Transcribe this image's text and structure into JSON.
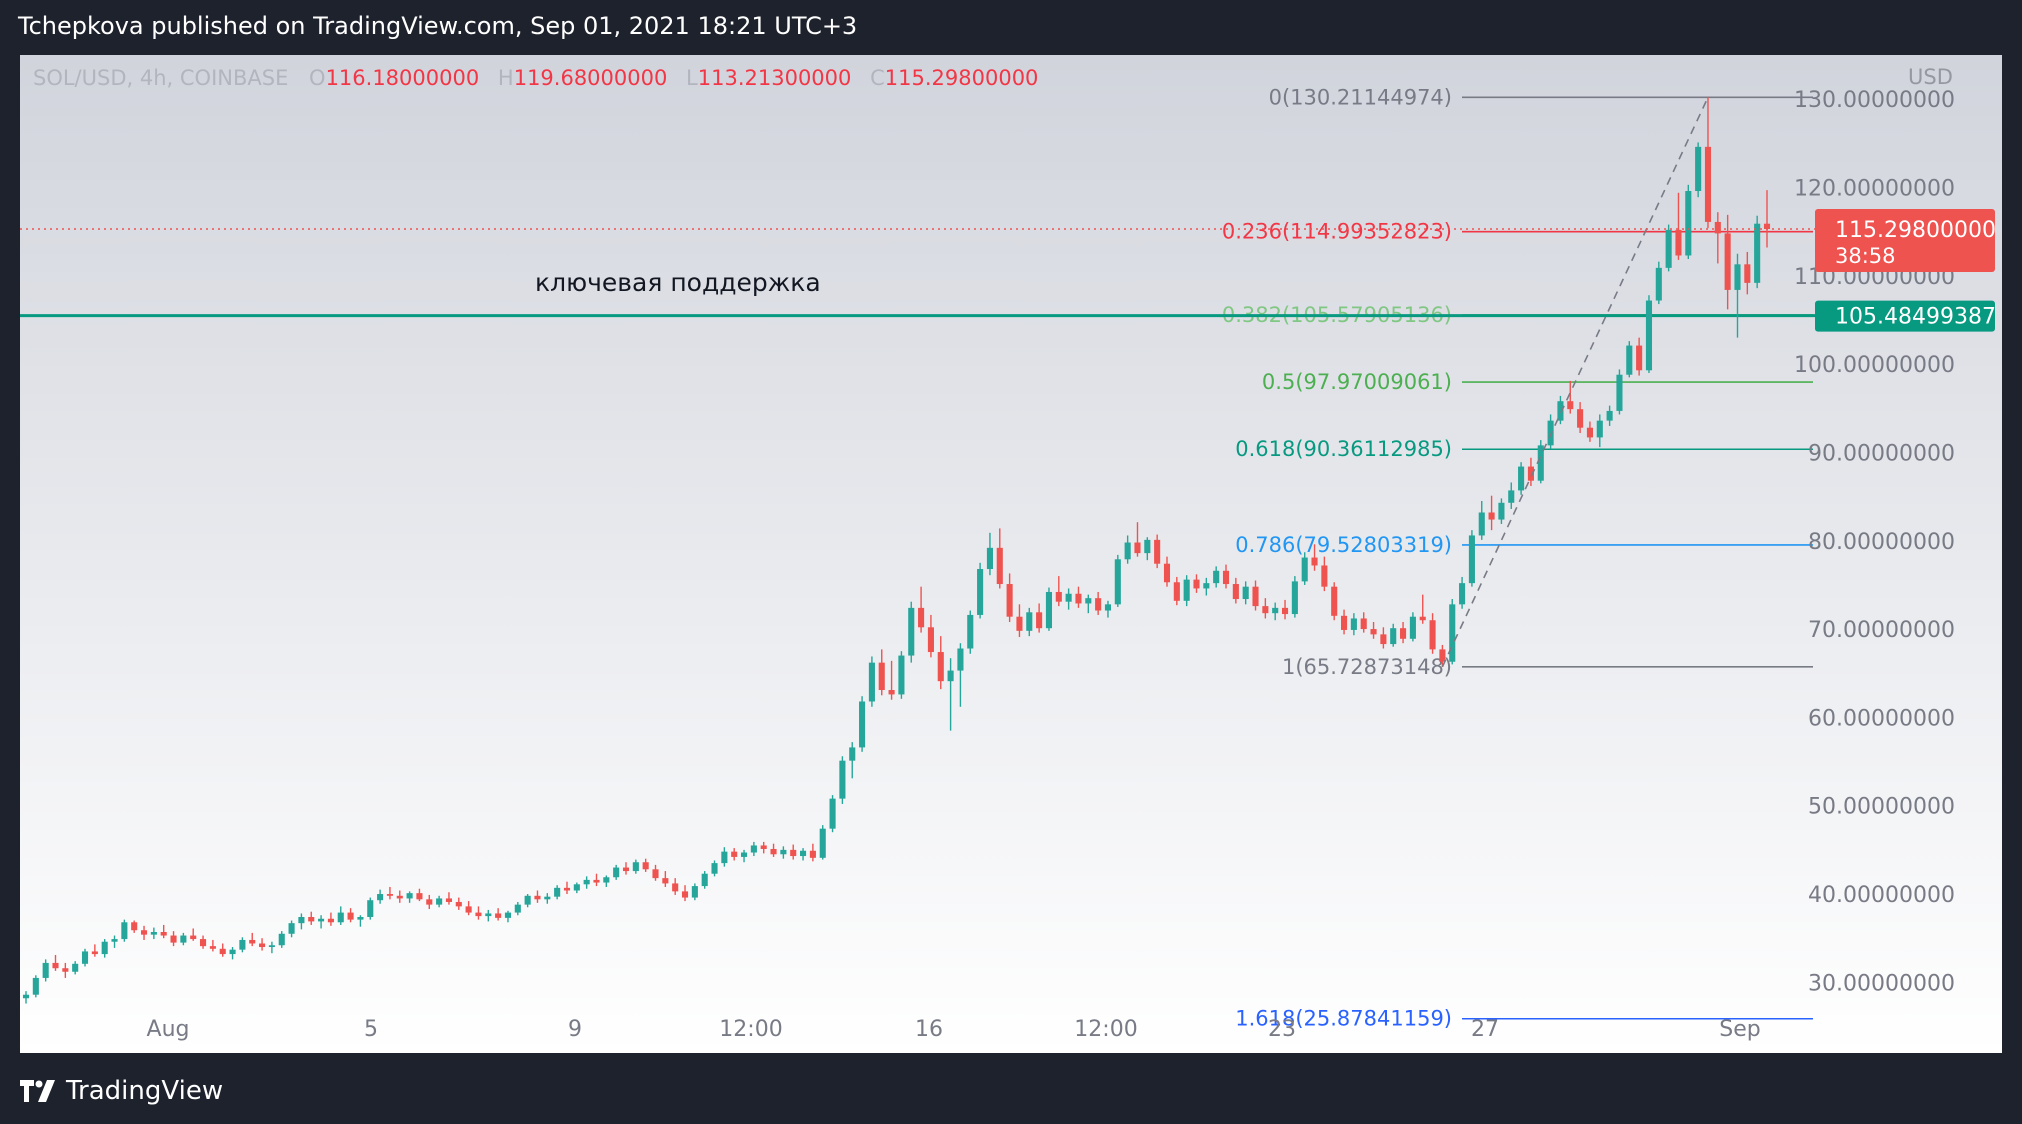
{
  "header": {
    "published": "Tchepkova published on TradingView.com, Sep 01, 2021 18:21 UTC+3"
  },
  "footer": {
    "brand": "TradingView"
  },
  "colors": {
    "up": "#26a69a",
    "down": "#ef5350",
    "frame": "#1e222d",
    "support": "#089981"
  },
  "symbol": {
    "name": "SOL/USD, 4h, COINBASE",
    "o_label": "O",
    "o": "116.18000000",
    "h_label": "H",
    "h": "119.68000000",
    "l_label": "L",
    "l": "113.21300000",
    "c_label": "C",
    "c": "115.29800000"
  },
  "price_axis": {
    "unit": "USD",
    "last_price": "115.29800000",
    "countdown": "38:58",
    "support_price": "105.48499387"
  },
  "annotation": {
    "text": "ключевая поддержка"
  },
  "chart_data": {
    "type": "candlestick",
    "ylim": [
      22,
      135
    ],
    "y_ticks": [
      30,
      40,
      50,
      60,
      70,
      80,
      90,
      100,
      110,
      120,
      130
    ],
    "y_tick_labels": [
      "30.00000000",
      "40.00000000",
      "50.00000000",
      "60.00000000",
      "70.00000000",
      "80.00000000",
      "90.00000000",
      "100.00000000",
      "110.00000000",
      "120.00000000",
      "130.00000000"
    ],
    "x_ticks": [
      "Aug",
      "5",
      "9",
      "12:00",
      "16",
      "12:00",
      "23",
      "27",
      "Sep"
    ],
    "last_price": 115.298,
    "support_level": 105.48499387,
    "fib": [
      {
        "label": "0(130.21144974)",
        "value": 130.21144974,
        "color": "#787b86"
      },
      {
        "label": "0.236(114.99352823)",
        "value": 114.99352823,
        "color": "#f23645"
      },
      {
        "label": "0.382(105.57905136)",
        "value": 105.57905136,
        "color": "#81c784"
      },
      {
        "label": "0.5(97.97009061)",
        "value": 97.97009061,
        "color": "#4caf50"
      },
      {
        "label": "0.618(90.36112985)",
        "value": 90.36112985,
        "color": "#089981"
      },
      {
        "label": "0.786(79.52803319)",
        "value": 79.52803319,
        "color": "#2196f3"
      },
      {
        "label": "1(65.72873148)",
        "value": 65.72873148,
        "color": "#787b86"
      },
      {
        "label": "1.618(25.87841159)",
        "value": 25.87841159,
        "color": "#2962ff"
      }
    ],
    "candles": [
      [
        28.2,
        29.0,
        27.6,
        28.6
      ],
      [
        28.6,
        30.8,
        28.3,
        30.5
      ],
      [
        30.5,
        32.6,
        30.1,
        32.2
      ],
      [
        32.2,
        33.1,
        31.3,
        31.6
      ],
      [
        31.6,
        32.2,
        30.5,
        31.2
      ],
      [
        31.2,
        32.4,
        30.9,
        32.1
      ],
      [
        32.1,
        33.8,
        31.8,
        33.5
      ],
      [
        33.5,
        34.3,
        32.9,
        33.2
      ],
      [
        33.2,
        34.9,
        32.8,
        34.6
      ],
      [
        34.6,
        35.3,
        33.9,
        34.9
      ],
      [
        34.9,
        37.1,
        34.6,
        36.8
      ],
      [
        36.8,
        37.0,
        35.6,
        35.9
      ],
      [
        35.9,
        36.4,
        34.8,
        35.4
      ],
      [
        35.4,
        36.2,
        34.9,
        35.7
      ],
      [
        35.7,
        36.5,
        35.0,
        35.3
      ],
      [
        35.3,
        35.8,
        34.1,
        34.5
      ],
      [
        34.5,
        35.6,
        34.2,
        35.3
      ],
      [
        35.3,
        36.1,
        34.7,
        34.9
      ],
      [
        34.9,
        35.3,
        33.8,
        34.1
      ],
      [
        34.1,
        34.8,
        33.5,
        33.8
      ],
      [
        33.8,
        34.4,
        32.9,
        33.2
      ],
      [
        33.2,
        34.0,
        32.6,
        33.7
      ],
      [
        33.7,
        35.1,
        33.4,
        34.8
      ],
      [
        34.8,
        35.6,
        34.1,
        34.4
      ],
      [
        34.4,
        35.0,
        33.6,
        34.0
      ],
      [
        34.0,
        34.6,
        33.3,
        34.2
      ],
      [
        34.2,
        35.8,
        33.9,
        35.5
      ],
      [
        35.5,
        37.0,
        35.1,
        36.7
      ],
      [
        36.7,
        37.8,
        36.0,
        37.4
      ],
      [
        37.4,
        38.0,
        36.5,
        36.9
      ],
      [
        36.9,
        37.6,
        36.1,
        37.2
      ],
      [
        37.2,
        37.9,
        36.4,
        36.8
      ],
      [
        36.8,
        38.6,
        36.5,
        37.9
      ],
      [
        37.9,
        38.4,
        36.8,
        37.1
      ],
      [
        37.1,
        37.6,
        36.3,
        37.4
      ],
      [
        37.4,
        39.6,
        37.1,
        39.3
      ],
      [
        39.3,
        40.5,
        38.9,
        40.0
      ],
      [
        40.0,
        40.8,
        39.4,
        39.8
      ],
      [
        39.8,
        40.4,
        39.0,
        39.5
      ],
      [
        39.5,
        40.3,
        39.0,
        40.1
      ],
      [
        40.1,
        40.6,
        39.2,
        39.4
      ],
      [
        39.4,
        39.9,
        38.3,
        38.8
      ],
      [
        38.8,
        39.8,
        38.5,
        39.5
      ],
      [
        39.5,
        40.2,
        38.8,
        39.1
      ],
      [
        39.1,
        39.6,
        38.2,
        38.6
      ],
      [
        38.6,
        39.2,
        37.6,
        37.9
      ],
      [
        37.9,
        38.6,
        37.1,
        37.5
      ],
      [
        37.5,
        38.2,
        36.9,
        37.8
      ],
      [
        37.8,
        38.4,
        37.0,
        37.3
      ],
      [
        37.3,
        38.1,
        36.8,
        37.9
      ],
      [
        37.9,
        39.1,
        37.6,
        38.8
      ],
      [
        38.8,
        40.0,
        38.5,
        39.8
      ],
      [
        39.8,
        40.4,
        39.0,
        39.4
      ],
      [
        39.4,
        40.1,
        38.9,
        39.7
      ],
      [
        39.7,
        41.0,
        39.4,
        40.7
      ],
      [
        40.7,
        41.4,
        40.0,
        40.4
      ],
      [
        40.4,
        41.3,
        40.1,
        41.1
      ],
      [
        41.1,
        42.0,
        40.6,
        41.6
      ],
      [
        41.6,
        42.3,
        40.9,
        41.3
      ],
      [
        41.3,
        42.1,
        40.8,
        41.9
      ],
      [
        41.9,
        43.3,
        41.6,
        43.0
      ],
      [
        43.0,
        43.6,
        42.2,
        42.6
      ],
      [
        42.6,
        43.9,
        42.3,
        43.6
      ],
      [
        43.6,
        44.0,
        42.5,
        42.8
      ],
      [
        42.8,
        43.3,
        41.5,
        41.8
      ],
      [
        41.8,
        42.6,
        40.8,
        41.2
      ],
      [
        41.2,
        41.8,
        39.9,
        40.3
      ],
      [
        40.3,
        41.0,
        39.2,
        39.6
      ],
      [
        39.6,
        41.2,
        39.3,
        40.9
      ],
      [
        40.9,
        42.6,
        40.6,
        42.3
      ],
      [
        42.3,
        43.8,
        42.0,
        43.5
      ],
      [
        43.5,
        45.3,
        43.1,
        44.8
      ],
      [
        44.8,
        45.2,
        43.8,
        44.2
      ],
      [
        44.2,
        45.0,
        43.6,
        44.7
      ],
      [
        44.7,
        45.9,
        44.3,
        45.5
      ],
      [
        45.5,
        45.9,
        44.6,
        45.1
      ],
      [
        45.1,
        45.7,
        44.2,
        44.5
      ],
      [
        44.5,
        45.4,
        44.0,
        45.0
      ],
      [
        45.0,
        45.6,
        43.9,
        44.3
      ],
      [
        44.3,
        45.2,
        43.8,
        44.9
      ],
      [
        44.9,
        45.7,
        43.7,
        44.1
      ],
      [
        44.1,
        47.8,
        43.9,
        47.4
      ],
      [
        47.4,
        51.2,
        47.0,
        50.8
      ],
      [
        50.8,
        55.6,
        50.2,
        55.1
      ],
      [
        55.1,
        57.2,
        53.1,
        56.6
      ],
      [
        56.6,
        62.4,
        56.1,
        61.8
      ],
      [
        61.8,
        66.9,
        61.2,
        66.2
      ],
      [
        66.2,
        67.7,
        62.5,
        63.1
      ],
      [
        63.1,
        66.4,
        62.0,
        62.6
      ],
      [
        62.6,
        67.5,
        62.1,
        67.0
      ],
      [
        67.0,
        73.1,
        66.2,
        72.4
      ],
      [
        72.4,
        74.8,
        69.6,
        70.2
      ],
      [
        70.2,
        71.6,
        66.8,
        67.4
      ],
      [
        67.4,
        69.2,
        63.2,
        64.1
      ],
      [
        64.1,
        66.7,
        58.5,
        65.3
      ],
      [
        65.3,
        68.4,
        61.2,
        67.8
      ],
      [
        67.8,
        72.1,
        67.2,
        71.6
      ],
      [
        71.6,
        77.5,
        71.2,
        76.8
      ],
      [
        76.8,
        80.9,
        76.1,
        79.2
      ],
      [
        79.2,
        81.4,
        74.6,
        75.1
      ],
      [
        75.1,
        76.3,
        70.8,
        71.4
      ],
      [
        71.4,
        72.8,
        69.1,
        69.8
      ],
      [
        69.8,
        72.4,
        69.2,
        71.9
      ],
      [
        71.9,
        72.9,
        69.6,
        70.1
      ],
      [
        70.1,
        74.7,
        69.8,
        74.2
      ],
      [
        74.2,
        76.0,
        72.6,
        73.1
      ],
      [
        73.1,
        74.6,
        72.2,
        74.0
      ],
      [
        74.0,
        74.8,
        72.4,
        72.9
      ],
      [
        72.9,
        73.9,
        71.8,
        73.5
      ],
      [
        73.5,
        74.2,
        71.6,
        72.1
      ],
      [
        72.1,
        73.2,
        71.3,
        72.8
      ],
      [
        72.8,
        78.4,
        72.5,
        77.9
      ],
      [
        77.9,
        80.6,
        77.4,
        79.8
      ],
      [
        79.8,
        82.1,
        78.2,
        78.6
      ],
      [
        78.6,
        80.4,
        77.8,
        80.1
      ],
      [
        80.1,
        80.7,
        76.9,
        77.4
      ],
      [
        77.4,
        78.2,
        74.8,
        75.3
      ],
      [
        75.3,
        75.9,
        72.7,
        73.2
      ],
      [
        73.2,
        76.1,
        72.6,
        75.6
      ],
      [
        75.6,
        76.2,
        74.1,
        74.6
      ],
      [
        74.6,
        75.8,
        73.8,
        75.2
      ],
      [
        75.2,
        77.1,
        74.7,
        76.6
      ],
      [
        76.6,
        77.3,
        74.6,
        75.1
      ],
      [
        75.1,
        75.8,
        72.9,
        73.4
      ],
      [
        73.4,
        75.4,
        72.8,
        74.8
      ],
      [
        74.8,
        75.5,
        72.1,
        72.6
      ],
      [
        72.6,
        73.5,
        71.2,
        71.8
      ],
      [
        71.8,
        73.0,
        71.0,
        72.4
      ],
      [
        72.4,
        73.3,
        71.1,
        71.7
      ],
      [
        71.7,
        76.0,
        71.3,
        75.4
      ],
      [
        75.4,
        78.7,
        75.0,
        78.1
      ],
      [
        78.1,
        79.6,
        76.6,
        77.2
      ],
      [
        77.2,
        78.2,
        74.3,
        74.8
      ],
      [
        74.8,
        75.3,
        71.0,
        71.5
      ],
      [
        71.5,
        72.2,
        69.4,
        69.9
      ],
      [
        69.9,
        71.8,
        69.3,
        71.2
      ],
      [
        71.2,
        71.9,
        69.6,
        70.0
      ],
      [
        70.0,
        70.8,
        68.9,
        69.4
      ],
      [
        69.4,
        70.2,
        67.8,
        68.3
      ],
      [
        68.3,
        70.6,
        68.0,
        70.1
      ],
      [
        70.1,
        70.8,
        68.4,
        68.9
      ],
      [
        68.9,
        71.9,
        68.6,
        71.4
      ],
      [
        71.4,
        73.9,
        70.6,
        71.0
      ],
      [
        71.0,
        71.8,
        67.2,
        67.7
      ],
      [
        67.7,
        68.2,
        65.7,
        66.3
      ],
      [
        66.3,
        73.4,
        66.0,
        72.8
      ],
      [
        72.8,
        75.9,
        72.3,
        75.2
      ],
      [
        75.2,
        81.2,
        74.8,
        80.6
      ],
      [
        80.6,
        84.5,
        80.1,
        83.2
      ],
      [
        83.2,
        85.1,
        81.2,
        82.4
      ],
      [
        82.4,
        84.8,
        81.9,
        84.3
      ],
      [
        84.3,
        86.6,
        83.6,
        85.7
      ],
      [
        85.7,
        88.9,
        85.2,
        88.4
      ],
      [
        88.4,
        89.4,
        86.2,
        86.8
      ],
      [
        86.8,
        91.4,
        86.5,
        90.8
      ],
      [
        90.8,
        94.3,
        90.4,
        93.6
      ],
      [
        93.6,
        96.4,
        93.2,
        95.8
      ],
      [
        95.8,
        98.1,
        94.4,
        94.9
      ],
      [
        94.9,
        95.7,
        92.2,
        92.8
      ],
      [
        92.8,
        93.5,
        91.2,
        91.7
      ],
      [
        91.7,
        94.3,
        90.6,
        93.6
      ],
      [
        93.6,
        95.3,
        93.0,
        94.7
      ],
      [
        94.7,
        99.4,
        94.3,
        98.8
      ],
      [
        98.8,
        102.6,
        98.5,
        102.1
      ],
      [
        102.1,
        103.0,
        98.7,
        99.3
      ],
      [
        99.3,
        107.8,
        99.0,
        107.2
      ],
      [
        107.2,
        111.6,
        106.8,
        110.9
      ],
      [
        110.9,
        115.8,
        110.5,
        115.2
      ],
      [
        115.2,
        119.4,
        111.8,
        112.3
      ],
      [
        112.3,
        120.3,
        111.9,
        119.6
      ],
      [
        119.6,
        125.1,
        118.9,
        124.6
      ],
      [
        124.6,
        130.2,
        115.4,
        116.1
      ],
      [
        116.1,
        117.2,
        111.4,
        114.8
      ],
      [
        114.8,
        116.9,
        106.2,
        108.4
      ],
      [
        108.4,
        112.5,
        103.0,
        111.3
      ],
      [
        111.3,
        112.7,
        107.9,
        109.2
      ],
      [
        109.2,
        116.8,
        108.6,
        115.9
      ],
      [
        115.9,
        119.7,
        113.2,
        115.3
      ]
    ]
  }
}
